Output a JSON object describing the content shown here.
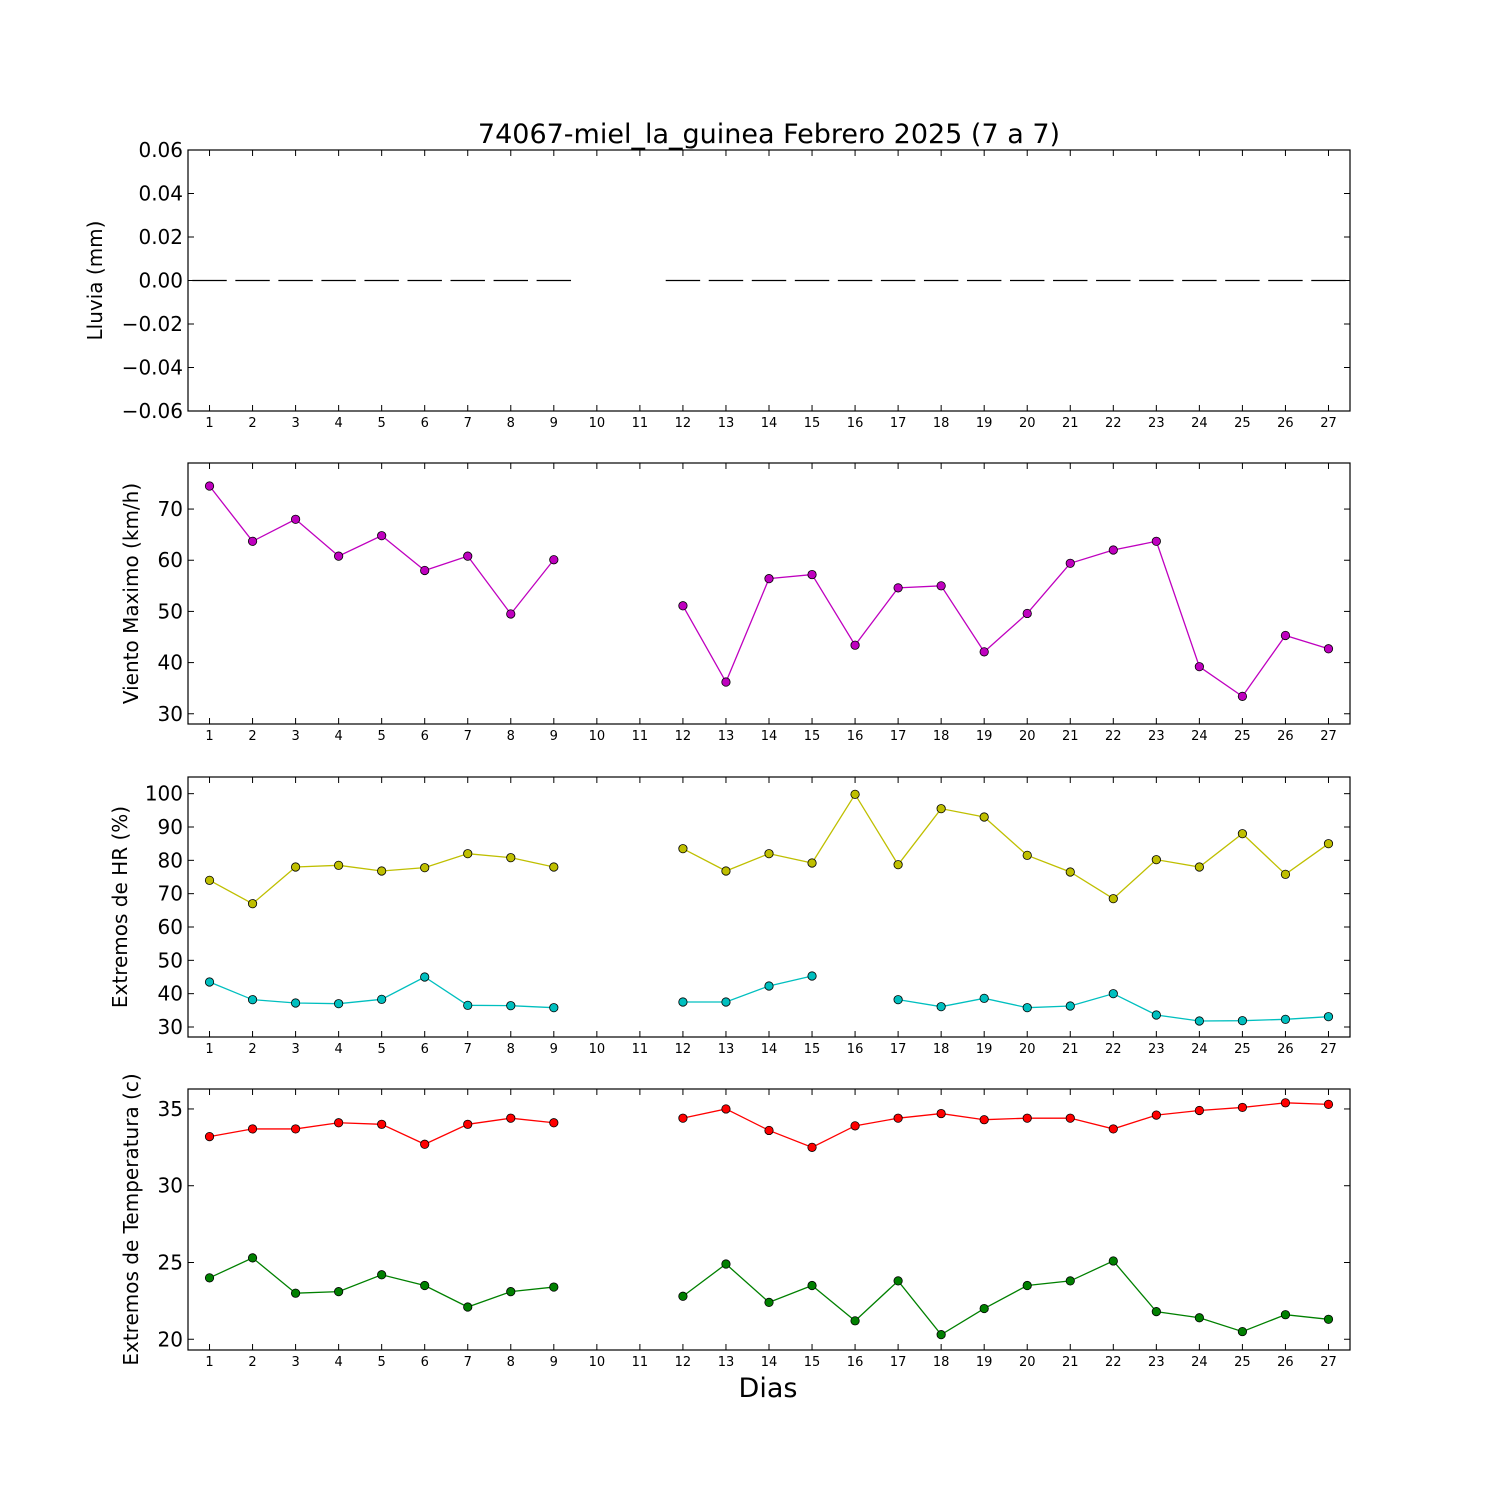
{
  "figure": {
    "title": "74067-miel_la_guinea Febrero 2025  (7 a 7)",
    "xlabel": "Dias"
  },
  "chart_data": [
    {
      "type": "line",
      "title": "74067-miel_la_guinea Febrero 2025  (7 a 7)",
      "ylabel": "Lluvia (mm)",
      "ylim": [
        -0.06,
        0.06
      ],
      "yticks": [
        -0.06,
        -0.04,
        -0.02,
        0.0,
        0.02,
        0.04,
        0.06
      ],
      "ytick_labels": [
        "−0.06",
        "−0.04",
        "−0.02",
        "0.00",
        "0.02",
        "0.04",
        "0.06"
      ],
      "x": [
        1,
        2,
        3,
        4,
        5,
        6,
        7,
        8,
        9,
        10,
        11,
        12,
        13,
        14,
        15,
        16,
        17,
        18,
        19,
        20,
        21,
        22,
        23,
        24,
        25,
        26,
        27
      ],
      "xlim": [
        0.5,
        27.5
      ],
      "grid": false,
      "series": [
        {
          "color": "#000000",
          "style": "bar-dash",
          "markers": false,
          "values": [
            0,
            0,
            0,
            0,
            0,
            0,
            0,
            0,
            0,
            null,
            null,
            0,
            0,
            0,
            0,
            0,
            0,
            0,
            0,
            0,
            0,
            0,
            0,
            0,
            0,
            0,
            0
          ]
        }
      ]
    },
    {
      "type": "line",
      "ylabel": "Viento Maximo (km/h)",
      "ylim": [
        28,
        79
      ],
      "yticks": [
        30,
        40,
        50,
        60,
        70
      ],
      "ytick_labels": [
        "30",
        "40",
        "50",
        "60",
        "70"
      ],
      "x": [
        1,
        2,
        3,
        4,
        5,
        6,
        7,
        8,
        9,
        10,
        11,
        12,
        13,
        14,
        15,
        16,
        17,
        18,
        19,
        20,
        21,
        22,
        23,
        24,
        25,
        26,
        27
      ],
      "xlim": [
        0.5,
        27.5
      ],
      "grid": false,
      "series": [
        {
          "color": "#bf00bf",
          "markers": true,
          "values": [
            74.5,
            63.7,
            68.0,
            60.8,
            64.8,
            58.0,
            60.8,
            49.5,
            60.1,
            null,
            null,
            51.1,
            36.2,
            56.4,
            57.2,
            43.4,
            54.6,
            55.0,
            42.1,
            49.6,
            59.4,
            62.0,
            63.7,
            39.2,
            33.4,
            45.3,
            42.7
          ]
        }
      ]
    },
    {
      "type": "line",
      "ylabel": "Extremos de HR (%)",
      "ylim": [
        27,
        105
      ],
      "yticks": [
        30,
        40,
        50,
        60,
        70,
        80,
        90,
        100
      ],
      "ytick_labels": [
        "30",
        "40",
        "50",
        "60",
        "70",
        "80",
        "90",
        "100"
      ],
      "x": [
        1,
        2,
        3,
        4,
        5,
        6,
        7,
        8,
        9,
        10,
        11,
        12,
        13,
        14,
        15,
        16,
        17,
        18,
        19,
        20,
        21,
        22,
        23,
        24,
        25,
        26,
        27
      ],
      "xlim": [
        0.5,
        27.5
      ],
      "grid": false,
      "series": [
        {
          "color": "#bfbf00",
          "markers": true,
          "values": [
            74.0,
            67.0,
            78.0,
            78.5,
            76.8,
            77.8,
            82.0,
            80.8,
            78.0,
            null,
            null,
            83.5,
            76.8,
            82.0,
            79.2,
            99.8,
            78.7,
            95.5,
            93.0,
            81.5,
            76.5,
            68.5,
            80.2,
            78.0,
            88.0,
            75.8,
            85.0
          ]
        },
        {
          "color": "#00bfbf",
          "markers": true,
          "values": [
            43.5,
            38.2,
            37.2,
            37.0,
            38.3,
            45.0,
            36.5,
            36.4,
            35.8,
            null,
            null,
            37.5,
            37.5,
            42.3,
            45.3,
            null,
            38.2,
            36.1,
            38.6,
            35.8,
            36.3,
            40.0,
            33.6,
            31.8,
            31.9,
            32.3,
            33.1
          ]
        }
      ]
    },
    {
      "type": "line",
      "ylabel": "Extremos de Temperatura (c)",
      "xlabel": "Dias",
      "ylim": [
        19.3,
        36.3
      ],
      "yticks": [
        20,
        25,
        30,
        35
      ],
      "ytick_labels": [
        "20",
        "25",
        "30",
        "35"
      ],
      "x": [
        1,
        2,
        3,
        4,
        5,
        6,
        7,
        8,
        9,
        10,
        11,
        12,
        13,
        14,
        15,
        16,
        17,
        18,
        19,
        20,
        21,
        22,
        23,
        24,
        25,
        26,
        27
      ],
      "xlim": [
        0.5,
        27.5
      ],
      "grid": false,
      "series": [
        {
          "color": "#ff0000",
          "markers": true,
          "values": [
            33.2,
            33.7,
            33.7,
            34.1,
            34.0,
            32.7,
            34.0,
            34.4,
            34.1,
            null,
            null,
            34.4,
            35.0,
            33.6,
            32.5,
            33.9,
            34.4,
            34.7,
            34.3,
            34.4,
            34.4,
            33.7,
            34.6,
            34.9,
            35.1,
            35.4,
            35.3
          ]
        },
        {
          "color": "#008000",
          "markers": true,
          "values": [
            24.0,
            25.3,
            23.0,
            23.1,
            24.2,
            23.5,
            22.1,
            23.1,
            23.4,
            null,
            null,
            22.8,
            24.9,
            22.4,
            23.5,
            21.2,
            23.8,
            20.3,
            22.0,
            23.5,
            23.8,
            25.1,
            21.8,
            21.4,
            20.5,
            21.6,
            21.3
          ]
        }
      ]
    }
  ]
}
